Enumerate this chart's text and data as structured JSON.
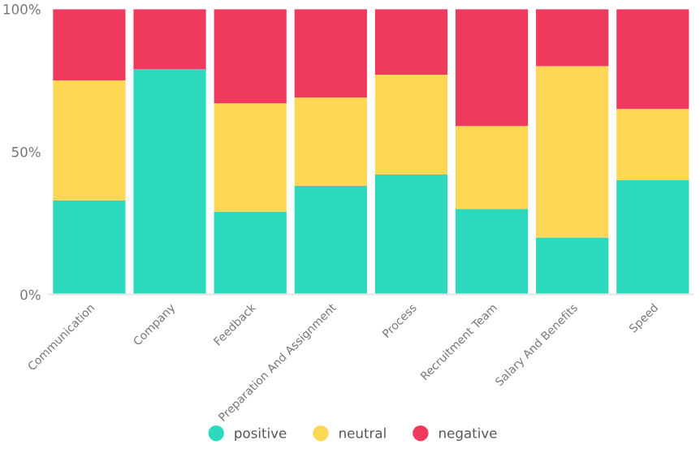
{
  "chart_data": {
    "type": "bar",
    "stacked": true,
    "categories": [
      "Communication",
      "Company",
      "Feedback",
      "Preparation And Assignment",
      "Process",
      "Recruitment Team",
      "Salary And Benefits",
      "Speed"
    ],
    "series": [
      {
        "name": "positive",
        "color": "#2dd9bd",
        "values": [
          33,
          79,
          29,
          38,
          42,
          30,
          20,
          40
        ]
      },
      {
        "name": "neutral",
        "color": "#fed855",
        "values": [
          42,
          0,
          38,
          31,
          35,
          29,
          60,
          25
        ]
      },
      {
        "name": "negative",
        "color": "#ef3a5d",
        "values": [
          25,
          21,
          33,
          31,
          23,
          41,
          20,
          35
        ]
      }
    ],
    "ylim": [
      0,
      100
    ],
    "yticks": [
      {
        "value": 0,
        "label": "0%"
      },
      {
        "value": 50,
        "label": "50%"
      },
      {
        "value": 100,
        "label": "100%"
      }
    ],
    "grid": false,
    "legend": "bottom"
  }
}
